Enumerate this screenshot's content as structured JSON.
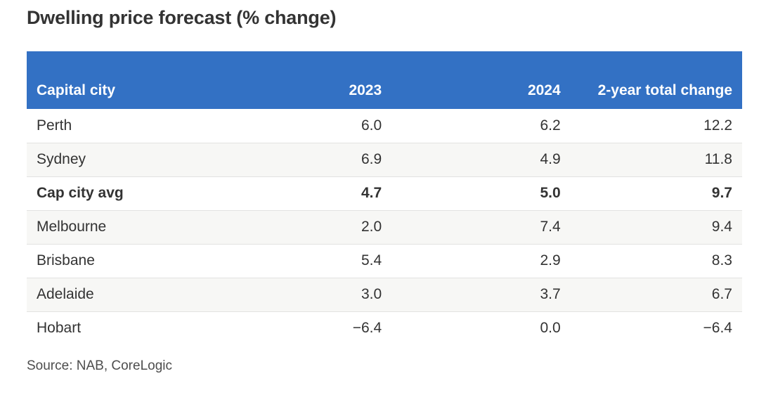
{
  "title": "Dwelling price forecast (% change)",
  "source": "Source: NAB, CoreLogic",
  "colors": {
    "header_bg": "#3371c4",
    "header_text": "#ffffff",
    "row_stripe": "#f7f7f5",
    "row_divider": "#e2e2e1",
    "body_text": "#333333",
    "source_text": "#4d4d4d"
  },
  "chart_data": {
    "type": "table",
    "title": "Dwelling price forecast (% change)",
    "columns": [
      "Capital city",
      "2023",
      "2024",
      "2-year total change"
    ],
    "rows": [
      [
        "Perth",
        "6.0",
        "6.2",
        "12.2"
      ],
      [
        "Sydney",
        "6.9",
        "4.9",
        "11.8"
      ],
      [
        "Cap city avg",
        "4.7",
        "5.0",
        "9.7"
      ],
      [
        "Melbourne",
        "2.0",
        "7.4",
        "9.4"
      ],
      [
        "Brisbane",
        "5.4",
        "2.9",
        "8.3"
      ],
      [
        "Adelaide",
        "3.0",
        "3.7",
        "6.7"
      ],
      [
        "Hobart",
        "−6.4",
        "0.0",
        "−6.4"
      ]
    ],
    "bold_row_index": 2,
    "striped_row_indices": [
      1,
      3,
      5
    ],
    "source": "Source: NAB, CoreLogic",
    "layout": {
      "numeric_alignment": "right",
      "header_alignment": "bottom",
      "grid": "horizontal row dividers only"
    }
  }
}
